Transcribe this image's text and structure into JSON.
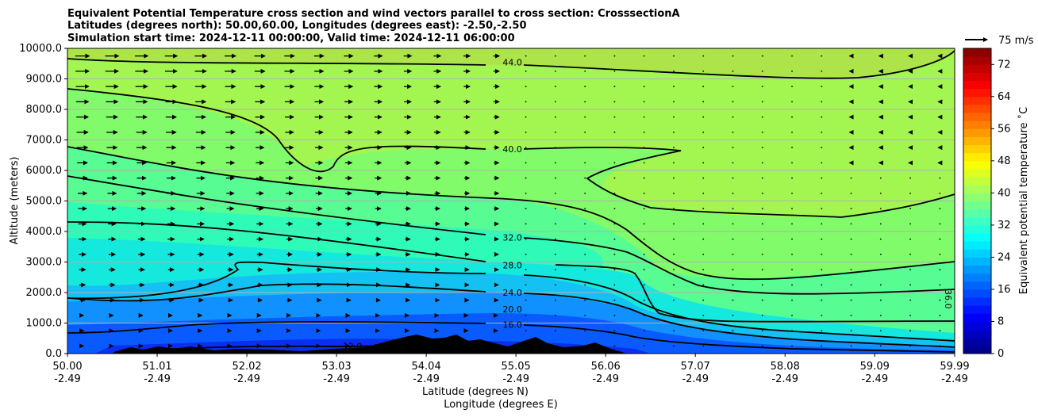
{
  "chart_data": {
    "type": "heatmap",
    "title_lines": [
      "Equivalent Potential Temperature cross section and wind vectors parallel to cross section: CrosssectionA",
      "Latitudes (degrees north): 50.00,60.00, Longitudes (degrees east): -2.50,-2.50",
      "Simulation start time: 2024-12-11 00:00:00, Valid time: 2024-12-11 06:00:00"
    ],
    "xlabel_line1": "Latitude (degrees N)",
    "xlabel_line2": "Longitude (degrees E)",
    "ylabel": "Altitude (meters)",
    "x_ticks": [
      {
        "lat": "50.00",
        "lon": "-2.49"
      },
      {
        "lat": "51.01",
        "lon": "-2.49"
      },
      {
        "lat": "52.02",
        "lon": "-2.49"
      },
      {
        "lat": "53.03",
        "lon": "-2.49"
      },
      {
        "lat": "54.04",
        "lon": "-2.49"
      },
      {
        "lat": "55.05",
        "lon": "-2.49"
      },
      {
        "lat": "56.06",
        "lon": "-2.49"
      },
      {
        "lat": "57.07",
        "lon": "-2.49"
      },
      {
        "lat": "58.08",
        "lon": "-2.49"
      },
      {
        "lat": "59.09",
        "lon": "-2.49"
      },
      {
        "lat": "59.99",
        "lon": "-2.49"
      }
    ],
    "xlim": [
      50.0,
      59.99
    ],
    "y_ticks": [
      "0.0",
      "1000.0",
      "2000.0",
      "3000.0",
      "4000.0",
      "5000.0",
      "6000.0",
      "7000.0",
      "8000.0",
      "9000.0",
      "10000.0"
    ],
    "ylim": [
      0,
      10000
    ],
    "grid": "horizontal",
    "colorbar": {
      "label": "Equivalent potential temperature $^\\circ$C",
      "label_display": "Equivalent potential temperature ˚C",
      "ticks": [
        "0",
        "8",
        "16",
        "24",
        "32",
        "40",
        "48",
        "56",
        "64",
        "72"
      ],
      "range": [
        0,
        76
      ],
      "levels": 38
    },
    "wind_key": {
      "label": "75 m/s"
    },
    "contours": [
      {
        "level": "44.0",
        "label_at": [
          54.9,
          9550
        ]
      },
      {
        "level": "40.0",
        "label_at": [
          54.9,
          6700
        ]
      },
      {
        "level": "36.0",
        "label_at": [
          59.92,
          2100
        ]
      },
      {
        "level": "32.0",
        "label_at": [
          54.9,
          3800
        ]
      },
      {
        "level": "28.0",
        "label_at": [
          54.9,
          2900
        ]
      },
      {
        "level": "24.0",
        "label_at": [
          54.9,
          2000
        ]
      },
      {
        "level": "20.0",
        "label_at": [
          54.9,
          1450
        ]
      },
      {
        "level": "16.0",
        "label_at": [
          54.9,
          950
        ]
      },
      {
        "level": "12.0",
        "label_at": [
          53.1,
          250
        ]
      }
    ]
  }
}
